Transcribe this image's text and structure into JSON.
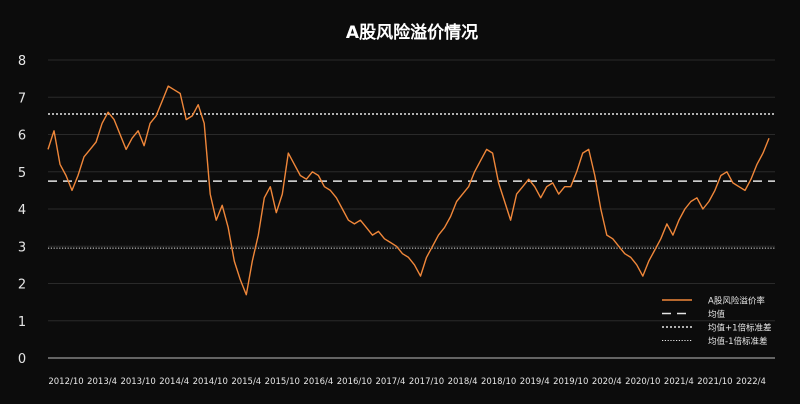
{
  "chart_data": {
    "type": "line",
    "title": "A股风险溢价情况",
    "ylim": [
      0,
      8
    ],
    "yticks": [
      0,
      1,
      2,
      3,
      4,
      5,
      6,
      7,
      8
    ],
    "xlim": [
      "2012-07",
      "2022-08"
    ],
    "xticks": [
      "2012/10",
      "2013/4",
      "2013/10",
      "2014/4",
      "2014/10",
      "2015/4",
      "2015/10",
      "2016/4",
      "2016/10",
      "2017/4",
      "2017/10",
      "2018/4",
      "2018/10",
      "2019/4",
      "2019/10",
      "2020/4",
      "2020/10",
      "2021/4",
      "2021/10",
      "2022/4"
    ],
    "legend_position": "bottom-right",
    "grid": true,
    "series": [
      {
        "name": "A股风险溢价率",
        "color": "#f0873a",
        "points": [
          [
            "2012-07",
            5.6
          ],
          [
            "2012-08",
            6.1
          ],
          [
            "2012-09",
            5.2
          ],
          [
            "2012-10",
            4.9
          ],
          [
            "2012-11",
            4.5
          ],
          [
            "2012-12",
            4.9
          ],
          [
            "2013-01",
            5.4
          ],
          [
            "2013-02",
            5.6
          ],
          [
            "2013-03",
            5.8
          ],
          [
            "2013-04",
            6.3
          ],
          [
            "2013-05",
            6.6
          ],
          [
            "2013-06",
            6.4
          ],
          [
            "2013-07",
            6.0
          ],
          [
            "2013-08",
            5.6
          ],
          [
            "2013-09",
            5.9
          ],
          [
            "2013-10",
            6.1
          ],
          [
            "2013-11",
            5.7
          ],
          [
            "2013-12",
            6.3
          ],
          [
            "2014-01",
            6.5
          ],
          [
            "2014-02",
            6.9
          ],
          [
            "2014-03",
            7.3
          ],
          [
            "2014-04",
            7.2
          ],
          [
            "2014-05",
            7.1
          ],
          [
            "2014-06",
            6.4
          ],
          [
            "2014-07",
            6.5
          ],
          [
            "2014-08",
            6.8
          ],
          [
            "2014-09",
            6.3
          ],
          [
            "2014-10",
            4.4
          ],
          [
            "2014-11",
            3.7
          ],
          [
            "2014-12",
            4.1
          ],
          [
            "2015-01",
            3.5
          ],
          [
            "2015-02",
            2.6
          ],
          [
            "2015-03",
            2.1
          ],
          [
            "2015-04",
            1.7
          ],
          [
            "2015-05",
            2.6
          ],
          [
            "2015-06",
            3.3
          ],
          [
            "2015-07",
            4.3
          ],
          [
            "2015-08",
            4.6
          ],
          [
            "2015-09",
            3.9
          ],
          [
            "2015-10",
            4.4
          ],
          [
            "2015-11",
            5.5
          ],
          [
            "2015-12",
            5.2
          ],
          [
            "2016-01",
            4.9
          ],
          [
            "2016-02",
            4.8
          ],
          [
            "2016-03",
            5.0
          ],
          [
            "2016-04",
            4.9
          ],
          [
            "2016-05",
            4.6
          ],
          [
            "2016-06",
            4.5
          ],
          [
            "2016-07",
            4.3
          ],
          [
            "2016-08",
            4.0
          ],
          [
            "2016-09",
            3.7
          ],
          [
            "2016-10",
            3.6
          ],
          [
            "2016-11",
            3.7
          ],
          [
            "2016-12",
            3.5
          ],
          [
            "2017-01",
            3.3
          ],
          [
            "2017-02",
            3.4
          ],
          [
            "2017-03",
            3.2
          ],
          [
            "2017-04",
            3.1
          ],
          [
            "2017-05",
            3.0
          ],
          [
            "2017-06",
            2.8
          ],
          [
            "2017-07",
            2.7
          ],
          [
            "2017-08",
            2.5
          ],
          [
            "2017-09",
            2.2
          ],
          [
            "2017-10",
            2.7
          ],
          [
            "2017-11",
            3.0
          ],
          [
            "2017-12",
            3.3
          ],
          [
            "2018-01",
            3.5
          ],
          [
            "2018-02",
            3.8
          ],
          [
            "2018-03",
            4.2
          ],
          [
            "2018-04",
            4.4
          ],
          [
            "2018-05",
            4.6
          ],
          [
            "2018-06",
            5.0
          ],
          [
            "2018-07",
            5.3
          ],
          [
            "2018-08",
            5.6
          ],
          [
            "2018-09",
            5.5
          ],
          [
            "2018-10",
            4.7
          ],
          [
            "2018-11",
            4.2
          ],
          [
            "2018-12",
            3.7
          ],
          [
            "2019-01",
            4.4
          ],
          [
            "2019-02",
            4.6
          ],
          [
            "2019-03",
            4.8
          ],
          [
            "2019-04",
            4.6
          ],
          [
            "2019-05",
            4.3
          ],
          [
            "2019-06",
            4.6
          ],
          [
            "2019-07",
            4.7
          ],
          [
            "2019-08",
            4.4
          ],
          [
            "2019-09",
            4.6
          ],
          [
            "2019-10",
            4.6
          ],
          [
            "2019-11",
            5.0
          ],
          [
            "2019-12",
            5.5
          ],
          [
            "2020-01",
            5.6
          ],
          [
            "2020-02",
            4.9
          ],
          [
            "2020-03",
            4.0
          ],
          [
            "2020-04",
            3.3
          ],
          [
            "2020-05",
            3.2
          ],
          [
            "2020-06",
            3.0
          ],
          [
            "2020-07",
            2.8
          ],
          [
            "2020-08",
            2.7
          ],
          [
            "2020-09",
            2.5
          ],
          [
            "2020-10",
            2.2
          ],
          [
            "2020-11",
            2.6
          ],
          [
            "2020-12",
            2.9
          ],
          [
            "2021-01",
            3.2
          ],
          [
            "2021-02",
            3.6
          ],
          [
            "2021-03",
            3.3
          ],
          [
            "2021-04",
            3.7
          ],
          [
            "2021-05",
            4.0
          ],
          [
            "2021-06",
            4.2
          ],
          [
            "2021-07",
            4.3
          ],
          [
            "2021-08",
            4.0
          ],
          [
            "2021-09",
            4.2
          ],
          [
            "2021-10",
            4.5
          ],
          [
            "2021-11",
            4.9
          ],
          [
            "2021-12",
            5.0
          ],
          [
            "2022-01",
            4.7
          ],
          [
            "2022-02",
            4.6
          ],
          [
            "2022-03",
            4.5
          ],
          [
            "2022-04",
            4.8
          ],
          [
            "2022-05",
            5.2
          ],
          [
            "2022-06",
            5.5
          ],
          [
            "2022-07",
            5.9
          ]
        ]
      }
    ],
    "reference_lines": [
      {
        "name": "均值",
        "value": 4.75,
        "color": "#e6e6e6",
        "dash": "dashed"
      },
      {
        "name": "均值+1倍标准差",
        "value": 6.55,
        "color": "#e6e6e6",
        "dash": "dotted"
      },
      {
        "name": "均值-1倍标准差",
        "value": 2.95,
        "color": "#e6e6e6",
        "dash": "dotted-fine"
      }
    ]
  }
}
